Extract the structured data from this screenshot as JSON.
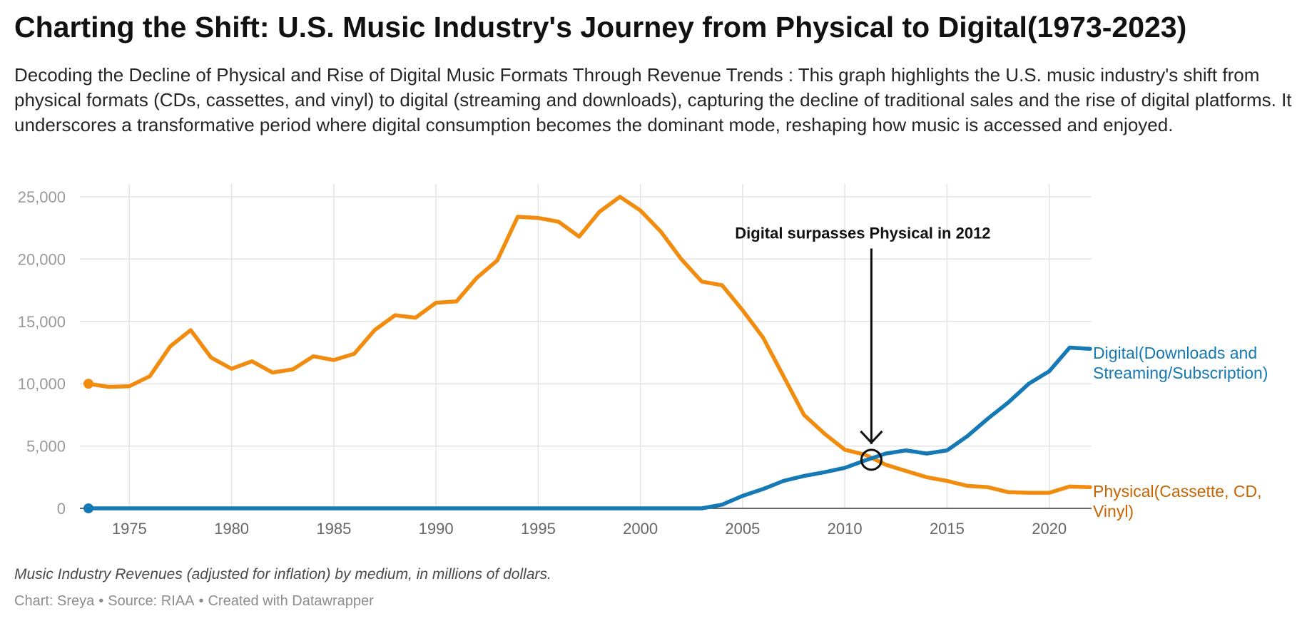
{
  "title": "Charting the Shift: U.S. Music Industry's Journey from Physical to Digital(1973-2023)",
  "subtitle": "Decoding the Decline of Physical and Rise of Digital Music Formats Through Revenue Trends : This graph highlights the U.S. music industry's shift from physical formats (CDs, cassettes, and vinyl) to digital (streaming and downloads), capturing the decline of traditional sales and the rise of digital platforms. It underscores a transformative period where digital consumption becomes the dominant mode, reshaping how music is accessed and enjoyed.",
  "note": "Music Industry Revenues (adjusted for inflation) by medium, in millions of dollars.",
  "footer": {
    "chart_by": "Chart: Sreya",
    "source": "Source: RIAA",
    "created_with": "Created with Datawrapper",
    "separator": "•"
  },
  "colors": {
    "physical": "#f28c0f",
    "physical_label": "#c86400",
    "digital": "#1479b4",
    "grid": "#e3e3e3",
    "axis": "#333333",
    "tick_label": "#999999",
    "x_tick_label": "#666666",
    "annotation": "#111111"
  },
  "chart_data": {
    "type": "line",
    "title": "Charting the Shift: U.S. Music Industry's Journey from Physical to Digital(1973-2023)",
    "xlabel": "",
    "ylabel": "",
    "xlim": [
      1973,
      2022
    ],
    "ylim": [
      0,
      25000
    ],
    "grid": true,
    "x_ticks": [
      1975,
      1980,
      1985,
      1990,
      1995,
      2000,
      2005,
      2010,
      2015,
      2020
    ],
    "x_tick_labels": [
      "1975",
      "1980",
      "1985",
      "1990",
      "1995",
      "2000",
      "2005",
      "2010",
      "2015",
      "2020"
    ],
    "y_ticks": [
      0,
      5000,
      10000,
      15000,
      20000,
      25000
    ],
    "y_tick_labels": [
      "0",
      "5,000",
      "10,000",
      "15,000",
      "20,000",
      "25,000"
    ],
    "x": [
      1973,
      1974,
      1975,
      1976,
      1977,
      1978,
      1979,
      1980,
      1981,
      1982,
      1983,
      1984,
      1985,
      1986,
      1987,
      1988,
      1989,
      1990,
      1991,
      1992,
      1993,
      1994,
      1995,
      1996,
      1997,
      1998,
      1999,
      2000,
      2001,
      2002,
      2003,
      2004,
      2005,
      2006,
      2007,
      2008,
      2009,
      2010,
      2011,
      2012,
      2013,
      2014,
      2015,
      2016,
      2017,
      2018,
      2019,
      2020,
      2021,
      2022
    ],
    "series": [
      {
        "name": "Physical(Cassette, CD, Vinyl)",
        "color": "#f28c0f",
        "label_color": "#c86400",
        "values": [
          10000,
          9750,
          9800,
          10600,
          13000,
          14300,
          12100,
          11200,
          11800,
          10900,
          11150,
          12200,
          11900,
          12400,
          14300,
          15500,
          15300,
          16500,
          16600,
          18500,
          19900,
          23400,
          23300,
          23000,
          21800,
          23800,
          25000,
          23900,
          22200,
          20000,
          18200,
          17900,
          15900,
          13700,
          10600,
          7500,
          6000,
          4700,
          4300,
          3500,
          3000,
          2500,
          2200,
          1800,
          1700,
          1300,
          1250,
          1250,
          1750,
          1700
        ]
      },
      {
        "name": "Digital(Downloads and Streaming/Subscription)",
        "color": "#1479b4",
        "label_color": "#1479b4",
        "values": [
          0,
          0,
          0,
          0,
          0,
          0,
          0,
          0,
          0,
          0,
          0,
          0,
          0,
          0,
          0,
          0,
          0,
          0,
          0,
          0,
          0,
          0,
          0,
          0,
          0,
          0,
          0,
          0,
          0,
          0,
          0,
          300,
          1000,
          1550,
          2200,
          2600,
          2900,
          3250,
          3850,
          4400,
          4650,
          4400,
          4650,
          5800,
          7200,
          8500,
          10000,
          11000,
          12900,
          12800
        ]
      }
    ],
    "annotations": [
      {
        "text": "Digital surpasses Physical in 2012",
        "x": 2011.3,
        "y": 3900,
        "text_y": 22000
      }
    ]
  }
}
